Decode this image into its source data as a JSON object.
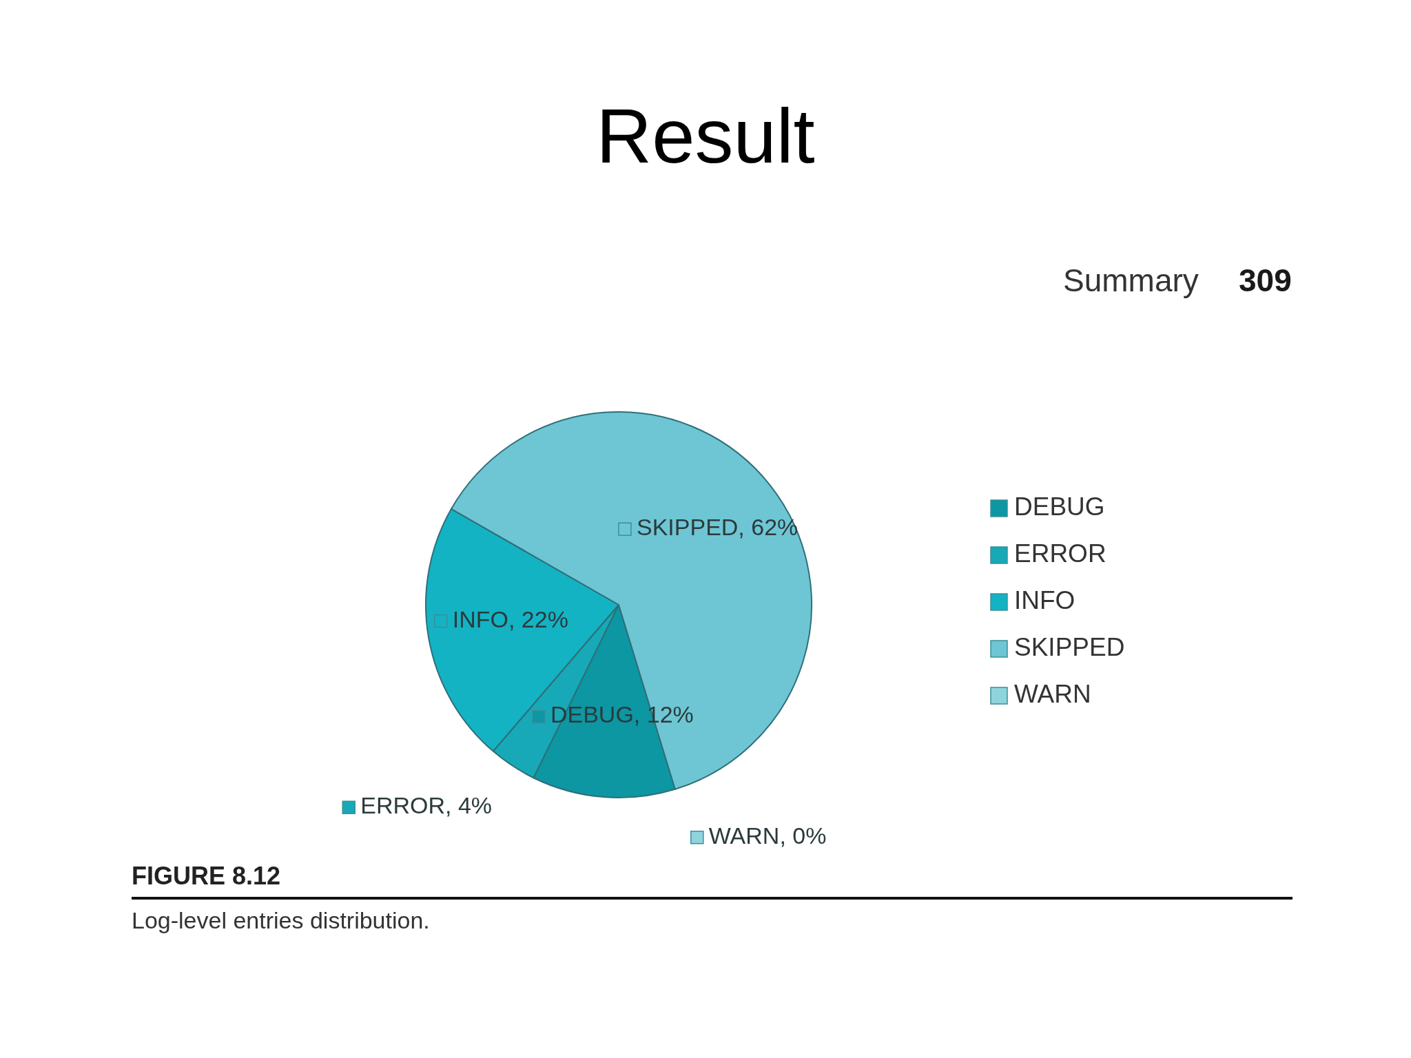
{
  "chart_data": {
    "type": "pie",
    "title": "Result",
    "categories": [
      "DEBUG",
      "ERROR",
      "INFO",
      "SKIPPED",
      "WARN"
    ],
    "values": [
      12,
      4,
      22,
      62,
      0
    ],
    "colors": [
      "#0c97a3",
      "#17a9b7",
      "#13b3c4",
      "#6ec6d4",
      "#8fd4dc"
    ],
    "value_labels": [
      "DEBUG, 12%",
      "ERROR, 4%",
      "INFO, 22%",
      "SKIPPED, 62%",
      "WARN, 0%"
    ],
    "legend": "right",
    "annotations": [
      "Summary",
      "309",
      "FIGURE 8.12",
      "Log-level entries distribution."
    ]
  }
}
